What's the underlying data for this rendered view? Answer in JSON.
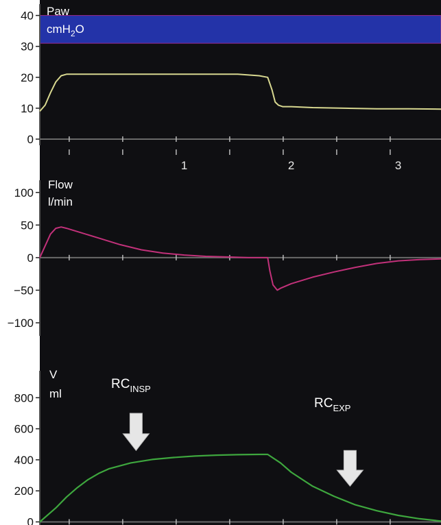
{
  "chart_data": [
    {
      "type": "line",
      "panel": "pressure",
      "label": "Paw",
      "unit": "cmH2O",
      "unit_main": "cmH",
      "unit_sub": "2",
      "unit_tail": "O",
      "ylim": [
        -2,
        45
      ],
      "yticks": [
        0,
        10,
        20,
        30,
        40
      ],
      "xticks": [
        1,
        2,
        3
      ],
      "xlim": [
        -0.35,
        3.4
      ],
      "alarm_band": {
        "from": 31,
        "to": 40,
        "color": "#2333a8"
      },
      "color": "#d8d890",
      "series": [
        {
          "x": [
            -0.35,
            -0.3,
            -0.25,
            -0.2,
            -0.15,
            -0.1,
            -0.05,
            0.0,
            0.1,
            0.3,
            0.5,
            0.7,
            0.9,
            1.1,
            1.3,
            1.5,
            1.7,
            1.78,
            1.82,
            1.85,
            1.88,
            1.92,
            2.0,
            2.2,
            2.5,
            2.8,
            3.1,
            3.4
          ],
          "y": [
            9,
            11,
            15,
            18.5,
            20.5,
            21,
            21,
            21,
            21,
            21,
            21,
            21,
            21,
            21,
            21,
            21,
            20.5,
            20,
            16,
            12,
            11,
            10.5,
            10.5,
            10.2,
            10,
            9.8,
            9.8,
            9.7
          ]
        }
      ]
    },
    {
      "type": "line",
      "panel": "flow",
      "label": "Flow",
      "unit": "l/min",
      "ylim": [
        -120,
        125
      ],
      "yticks": [
        100,
        50,
        0,
        -50,
        -100
      ],
      "xlim": [
        -0.35,
        3.4
      ],
      "color": "#c2317a",
      "series": [
        {
          "x": [
            -0.35,
            -0.3,
            -0.25,
            -0.2,
            -0.15,
            -0.1,
            0.0,
            0.2,
            0.4,
            0.6,
            0.8,
            1.0,
            1.2,
            1.4,
            1.6,
            1.78,
            1.8,
            1.83,
            1.87,
            1.9,
            2.0,
            2.2,
            2.4,
            2.6,
            2.8,
            3.0,
            3.2,
            3.4
          ],
          "y": [
            0,
            18,
            36,
            45,
            47,
            45,
            40,
            30,
            20,
            12,
            7,
            4,
            2,
            1,
            0,
            0,
            -20,
            -42,
            -50,
            -47,
            -40,
            -30,
            -22,
            -15,
            -9,
            -5,
            -3,
            -2
          ]
        }
      ]
    },
    {
      "type": "line",
      "panel": "volume",
      "label": "V",
      "unit": "ml",
      "ylim": [
        -20,
        1000
      ],
      "yticks": [
        800,
        600,
        400,
        200,
        0
      ],
      "xlim": [
        -0.35,
        3.4
      ],
      "color": "#3ea73e",
      "annotations": [
        {
          "main": "RC",
          "sub": "INSP",
          "arrow_x": 0.55,
          "arrow_top": 700,
          "arrow_bottom": 460
        },
        {
          "main": "RC",
          "sub": "EXP",
          "arrow_x": 2.55,
          "arrow_top": 460,
          "arrow_bottom": 230
        }
      ],
      "series": [
        {
          "x": [
            -0.35,
            -0.2,
            -0.1,
            0.0,
            0.1,
            0.2,
            0.3,
            0.5,
            0.7,
            0.9,
            1.1,
            1.3,
            1.5,
            1.7,
            1.78,
            1.9,
            2.0,
            2.2,
            2.4,
            2.6,
            2.8,
            3.0,
            3.2,
            3.4
          ],
          "y": [
            0,
            90,
            160,
            220,
            272,
            312,
            343,
            380,
            402,
            415,
            424,
            430,
            433,
            435,
            435,
            380,
            320,
            230,
            165,
            110,
            72,
            42,
            20,
            5
          ]
        }
      ]
    }
  ]
}
